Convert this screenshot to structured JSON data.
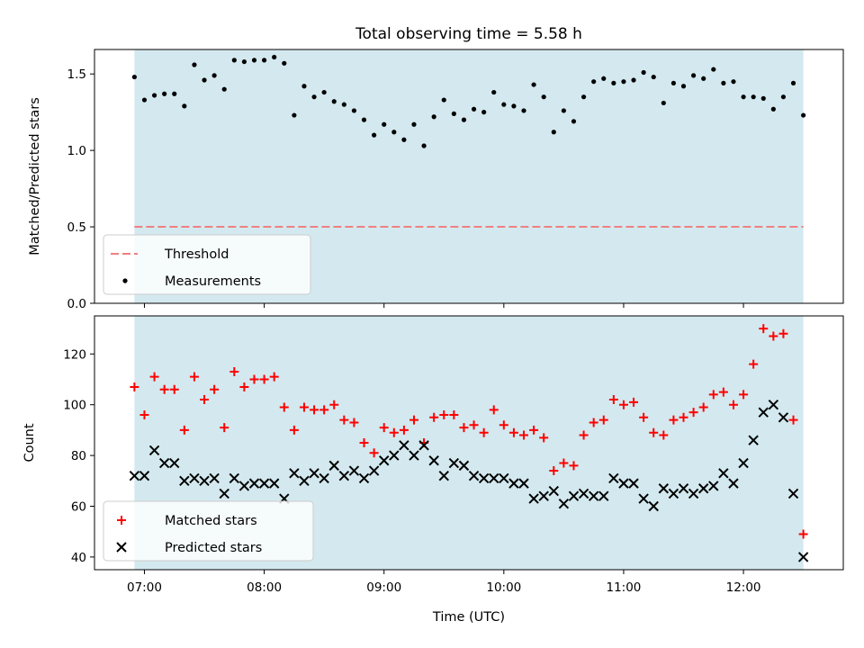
{
  "title": "Total observing time = 5.58 h",
  "chart_data": [
    {
      "type": "scatter",
      "ylabel": "Matched/Predicted stars",
      "xlabel": "",
      "ylim": [
        0,
        1.66
      ],
      "yticks": [
        0.0,
        0.5,
        1.0,
        1.5
      ],
      "ytick_labels": [
        "0.0",
        "0.5",
        "1.0",
        "1.5"
      ],
      "observing_window": [
        "06:55",
        "12:30"
      ],
      "threshold": 0.5,
      "legend": {
        "position": "lower-left",
        "entries": [
          "Threshold",
          "Measurements"
        ]
      },
      "series": [
        {
          "name": "Measurements",
          "color": "#000000",
          "marker": "dot",
          "x": [
            "06:55",
            "07:00",
            "07:05",
            "07:10",
            "07:15",
            "07:20",
            "07:25",
            "07:30",
            "07:35",
            "07:40",
            "07:45",
            "07:50",
            "07:55",
            "08:00",
            "08:05",
            "08:10",
            "08:15",
            "08:20",
            "08:25",
            "08:30",
            "08:35",
            "08:40",
            "08:45",
            "08:50",
            "08:55",
            "09:00",
            "09:05",
            "09:10",
            "09:15",
            "09:20",
            "09:25",
            "09:30",
            "09:35",
            "09:40",
            "09:45",
            "09:50",
            "09:55",
            "10:00",
            "10:05",
            "10:10",
            "10:15",
            "10:20",
            "10:25",
            "10:30",
            "10:35",
            "10:40",
            "10:45",
            "10:50",
            "10:55",
            "11:00",
            "11:05",
            "11:10",
            "11:15",
            "11:20",
            "11:25",
            "11:30",
            "11:35",
            "11:40",
            "11:45",
            "11:50",
            "11:55",
            "12:00",
            "12:05",
            "12:10",
            "12:15",
            "12:20",
            "12:25",
            "12:30"
          ],
          "y": [
            1.48,
            1.33,
            1.36,
            1.37,
            1.37,
            1.29,
            1.56,
            1.46,
            1.49,
            1.4,
            1.59,
            1.58,
            1.59,
            1.59,
            1.61,
            1.57,
            1.23,
            1.42,
            1.35,
            1.38,
            1.32,
            1.3,
            1.26,
            1.2,
            1.1,
            1.17,
            1.12,
            1.07,
            1.17,
            1.03,
            1.22,
            1.33,
            1.24,
            1.2,
            1.27,
            1.25,
            1.38,
            1.3,
            1.29,
            1.26,
            1.43,
            1.35,
            1.12,
            1.26,
            1.19,
            1.35,
            1.45,
            1.47,
            1.44,
            1.45,
            1.46,
            1.51,
            1.48,
            1.31,
            1.44,
            1.42,
            1.49,
            1.47,
            1.53,
            1.44,
            1.45,
            1.35,
            1.35,
            1.34,
            1.27,
            1.35,
            1.44,
            1.23
          ]
        }
      ]
    },
    {
      "type": "scatter",
      "ylabel": "Count",
      "xlabel": "Time (UTC)",
      "ylim": [
        35,
        135
      ],
      "yticks": [
        40,
        60,
        80,
        100,
        120
      ],
      "ytick_labels": [
        "40",
        "60",
        "80",
        "100",
        "120"
      ],
      "xlim": [
        "06:35",
        "12:50"
      ],
      "xticks": [
        "07:00",
        "08:00",
        "09:00",
        "10:00",
        "11:00",
        "12:00"
      ],
      "observing_window": [
        "06:55",
        "12:30"
      ],
      "legend": {
        "position": "lower-left",
        "entries": [
          "Matched stars",
          "Predicted stars"
        ]
      },
      "series": [
        {
          "name": "Matched stars",
          "color": "#ff0000",
          "marker": "plus",
          "x": [
            "06:55",
            "07:00",
            "07:05",
            "07:10",
            "07:15",
            "07:20",
            "07:25",
            "07:30",
            "07:35",
            "07:40",
            "07:45",
            "07:50",
            "07:55",
            "08:00",
            "08:05",
            "08:10",
            "08:15",
            "08:20",
            "08:25",
            "08:30",
            "08:35",
            "08:40",
            "08:45",
            "08:50",
            "08:55",
            "09:00",
            "09:05",
            "09:10",
            "09:15",
            "09:20",
            "09:25",
            "09:30",
            "09:35",
            "09:40",
            "09:45",
            "09:50",
            "09:55",
            "10:00",
            "10:05",
            "10:10",
            "10:15",
            "10:20",
            "10:25",
            "10:30",
            "10:35",
            "10:40",
            "10:45",
            "10:50",
            "10:55",
            "11:00",
            "11:05",
            "11:10",
            "11:15",
            "11:20",
            "11:25",
            "11:30",
            "11:35",
            "11:40",
            "11:45",
            "11:50",
            "11:55",
            "12:00",
            "12:05",
            "12:10",
            "12:15",
            "12:20",
            "12:25",
            "12:30"
          ],
          "y": [
            107,
            96,
            111,
            106,
            106,
            90,
            111,
            102,
            106,
            91,
            113,
            107,
            110,
            110,
            111,
            99,
            90,
            99,
            98,
            98,
            100,
            94,
            93,
            85,
            81,
            91,
            89,
            90,
            94,
            85,
            95,
            96,
            96,
            91,
            92,
            89,
            98,
            92,
            89,
            88,
            90,
            87,
            74,
            77,
            76,
            88,
            93,
            94,
            102,
            100,
            101,
            95,
            89,
            88,
            94,
            95,
            97,
            99,
            104,
            105,
            100,
            104,
            116,
            130,
            127,
            128,
            94,
            49
          ]
        },
        {
          "name": "Predicted stars",
          "color": "#000000",
          "marker": "x",
          "x": [
            "06:55",
            "07:00",
            "07:05",
            "07:10",
            "07:15",
            "07:20",
            "07:25",
            "07:30",
            "07:35",
            "07:40",
            "07:45",
            "07:50",
            "07:55",
            "08:00",
            "08:05",
            "08:10",
            "08:15",
            "08:20",
            "08:25",
            "08:30",
            "08:35",
            "08:40",
            "08:45",
            "08:50",
            "08:55",
            "09:00",
            "09:05",
            "09:10",
            "09:15",
            "09:20",
            "09:25",
            "09:30",
            "09:35",
            "09:40",
            "09:45",
            "09:50",
            "09:55",
            "10:00",
            "10:05",
            "10:10",
            "10:15",
            "10:20",
            "10:25",
            "10:30",
            "10:35",
            "10:40",
            "10:45",
            "10:50",
            "10:55",
            "11:00",
            "11:05",
            "11:10",
            "11:15",
            "11:20",
            "11:25",
            "11:30",
            "11:35",
            "11:40",
            "11:45",
            "11:50",
            "11:55",
            "12:00",
            "12:05",
            "12:10",
            "12:15",
            "12:20",
            "12:25",
            "12:30"
          ],
          "y": [
            72,
            72,
            82,
            77,
            77,
            70,
            71,
            70,
            71,
            65,
            71,
            68,
            69,
            69,
            69,
            63,
            73,
            70,
            73,
            71,
            76,
            72,
            74,
            71,
            74,
            78,
            80,
            84,
            80,
            84,
            78,
            72,
            77,
            76,
            72,
            71,
            71,
            71,
            69,
            69,
            63,
            64,
            66,
            61,
            64,
            65,
            64,
            64,
            71,
            69,
            69,
            63,
            60,
            67,
            65,
            67,
            65,
            67,
            68,
            73,
            69,
            77,
            86,
            97,
            100,
            95,
            65,
            40
          ]
        }
      ]
    }
  ],
  "colors": {
    "span": "#d3e9ef",
    "threshold": "#f08080",
    "matched": "#ff0000",
    "predicted": "#000000"
  }
}
